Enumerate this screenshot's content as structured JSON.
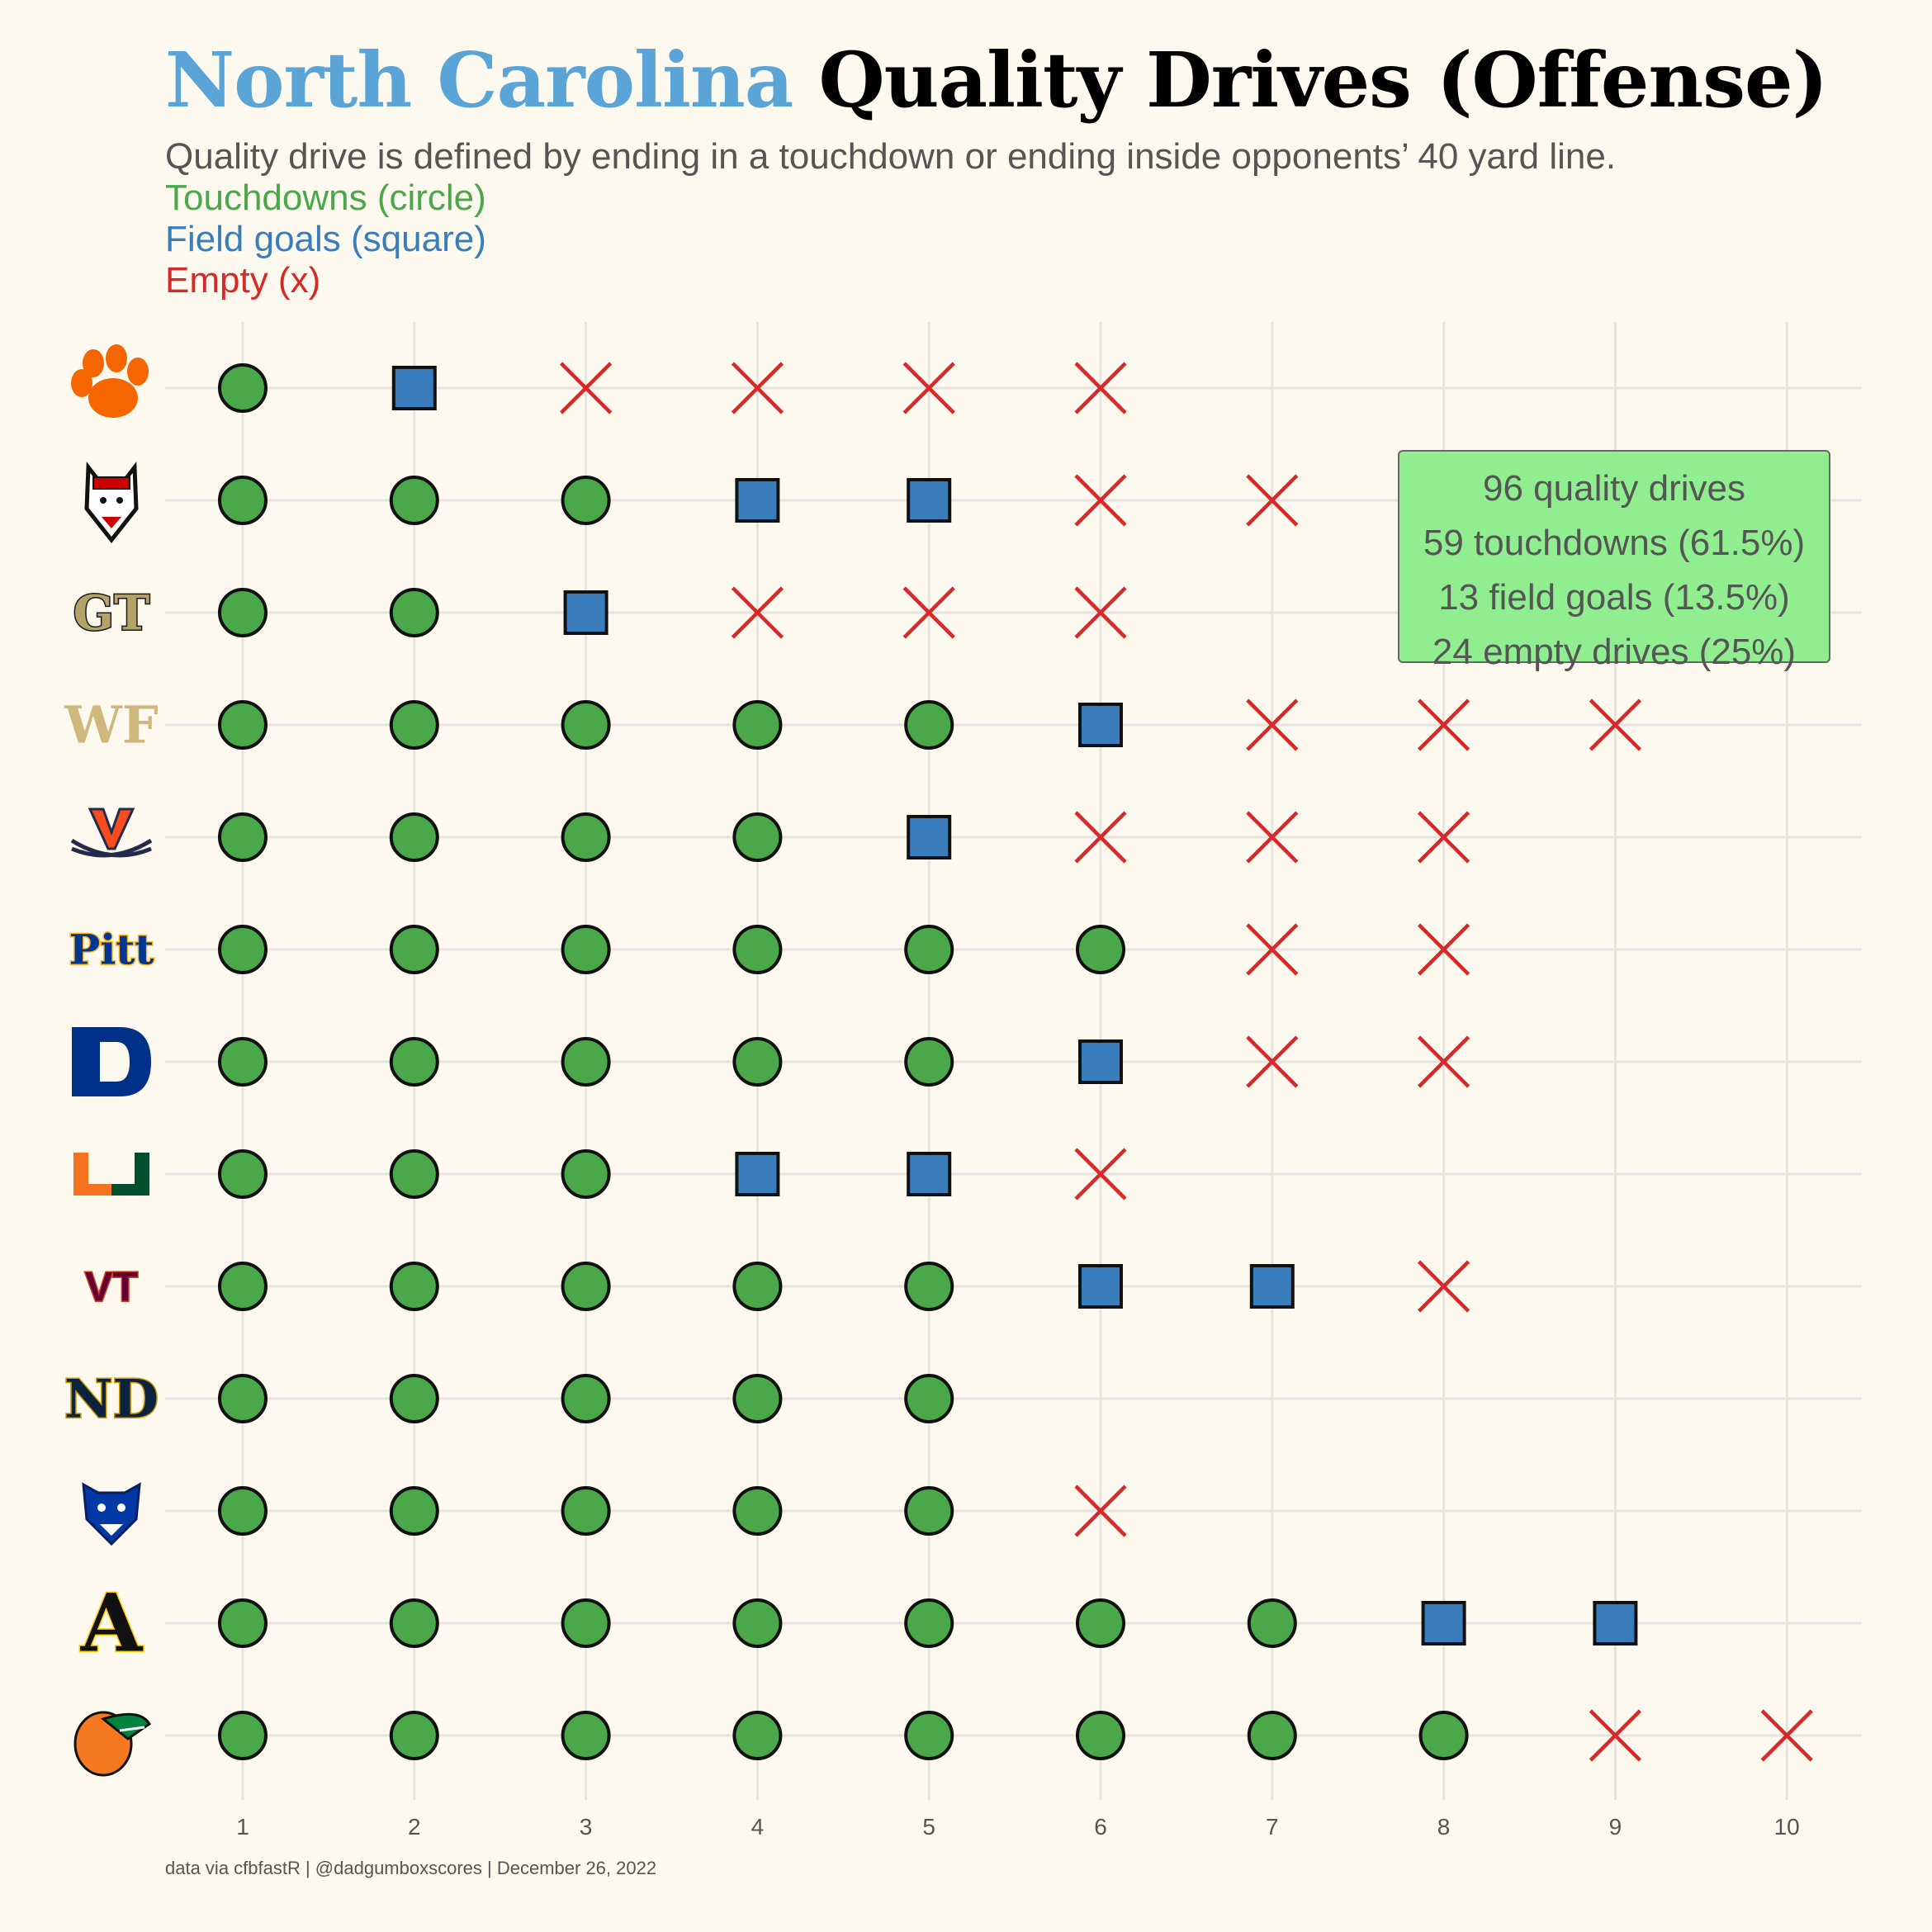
{
  "title": {
    "team": "North Carolina",
    "rest": "Quality Drives (Offense)",
    "team_color": "#5ba4d8"
  },
  "subtitle": {
    "definition": "Quality drive is defined by ending in a touchdown or ending inside opponents’ 40 yard line.",
    "touchdowns": "Touchdowns (circle)",
    "field_goals": "Field goals (square)",
    "empty": "Empty (x)"
  },
  "summary": {
    "line1": "96 quality drives",
    "line2": "59 touchdowns (61.5%)",
    "line3": "13 field goals (13.5%)",
    "line4": "24 empty drives (25%)"
  },
  "caption": "data via cfbfastR | @dadgumboxscores | December 26, 2022",
  "colors": {
    "touchdown": "#4aa84a",
    "field_goal": "#3a7dbd",
    "empty": "#d62a2a",
    "background": "#fdf9ee",
    "grid": "#e6e4e0"
  },
  "chart_data": {
    "type": "scatter",
    "x_ticks": [
      "1",
      "2",
      "3",
      "4",
      "5",
      "6",
      "7",
      "8",
      "9",
      "10"
    ],
    "xlim": [
      1,
      10
    ],
    "marker_legend": {
      "TD": "circle",
      "FG": "square",
      "X": "x"
    },
    "rows": [
      {
        "team_icon": "clemson-paw-logo",
        "drives": [
          "TD",
          "FG",
          "X",
          "X",
          "X",
          "X"
        ]
      },
      {
        "team_icon": "nc-state-wolf-logo",
        "drives": [
          "TD",
          "TD",
          "TD",
          "FG",
          "FG",
          "X",
          "X"
        ]
      },
      {
        "team_icon": "georgia-tech-gt-logo",
        "drives": [
          "TD",
          "TD",
          "FG",
          "X",
          "X",
          "X"
        ]
      },
      {
        "team_icon": "wake-forest-wf-logo",
        "drives": [
          "TD",
          "TD",
          "TD",
          "TD",
          "TD",
          "FG",
          "X",
          "X",
          "X"
        ]
      },
      {
        "team_icon": "virginia-v-sabres-logo",
        "drives": [
          "TD",
          "TD",
          "TD",
          "TD",
          "FG",
          "X",
          "X",
          "X"
        ]
      },
      {
        "team_icon": "pitt-logo",
        "drives": [
          "TD",
          "TD",
          "TD",
          "TD",
          "TD",
          "TD",
          "X",
          "X"
        ]
      },
      {
        "team_icon": "duke-d-logo",
        "drives": [
          "TD",
          "TD",
          "TD",
          "TD",
          "TD",
          "FG",
          "X",
          "X"
        ]
      },
      {
        "team_icon": "miami-u-logo",
        "drives": [
          "TD",
          "TD",
          "TD",
          "FG",
          "FG",
          "X"
        ]
      },
      {
        "team_icon": "virginia-tech-vt-logo",
        "drives": [
          "TD",
          "TD",
          "TD",
          "TD",
          "TD",
          "FG",
          "FG",
          "X"
        ]
      },
      {
        "team_icon": "notre-dame-nd-logo",
        "drives": [
          "TD",
          "TD",
          "TD",
          "TD",
          "TD"
        ]
      },
      {
        "team_icon": "georgia-state-panther-logo",
        "drives": [
          "TD",
          "TD",
          "TD",
          "TD",
          "TD",
          "X"
        ]
      },
      {
        "team_icon": "app-state-a-logo",
        "drives": [
          "TD",
          "TD",
          "TD",
          "TD",
          "TD",
          "TD",
          "TD",
          "FG",
          "FG"
        ]
      },
      {
        "team_icon": "famu-rattler-logo",
        "drives": [
          "TD",
          "TD",
          "TD",
          "TD",
          "TD",
          "TD",
          "TD",
          "TD",
          "X",
          "X"
        ]
      }
    ]
  }
}
